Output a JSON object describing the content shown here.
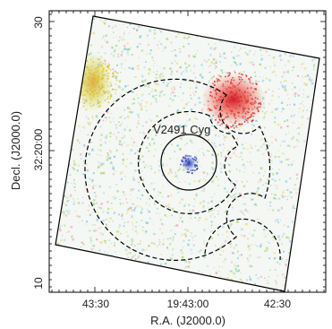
{
  "figure": {
    "source_name": "V2491 Cyg",
    "x_axis_label": "R.A. (J2000.0)",
    "y_axis_label": "Decl. (J2000.0)",
    "x_ticks": [
      "43:30",
      "19:43:00",
      "42:30"
    ],
    "y_ticks": [
      "30",
      "32:20:00",
      "10"
    ],
    "colors": {
      "frame": "#000000",
      "source_blue": "#2a3fb8",
      "source_red": "#e0202a",
      "source_yellow": "#d8c020",
      "noise_cyan": "#7fc9d8",
      "noise_green": "#a8d66a",
      "noise_pink": "#f0a0b0",
      "noise_yellow": "#f2de70"
    }
  }
}
